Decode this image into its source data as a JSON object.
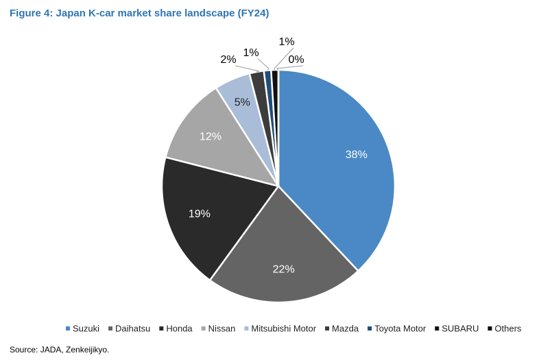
{
  "chart_data": {
    "type": "pie",
    "title": "Figure 4: Japan K-car market share landscape (FY24)",
    "categories": [
      "Suzuki",
      "Daihatsu",
      "Honda",
      "Nissan",
      "Mitsubishi Motor",
      "Mazda",
      "Toyota Motor",
      "SUBARU",
      "Others"
    ],
    "values": [
      38,
      22,
      19,
      12,
      5,
      2,
      1,
      1,
      0
    ],
    "value_labels": [
      "38%",
      "22%",
      "19%",
      "12%",
      "5%",
      "2%",
      "1%",
      "1%",
      "0%"
    ],
    "colors": [
      "#4a89c5",
      "#646464",
      "#2a2a2a",
      "#a6a6a6",
      "#a9bcd8",
      "#3c3c3c",
      "#1f4e79",
      "#111111",
      "#0a0a0a"
    ],
    "legend": "bottom",
    "source": "Source: JADA, Zenkeijikyo."
  }
}
